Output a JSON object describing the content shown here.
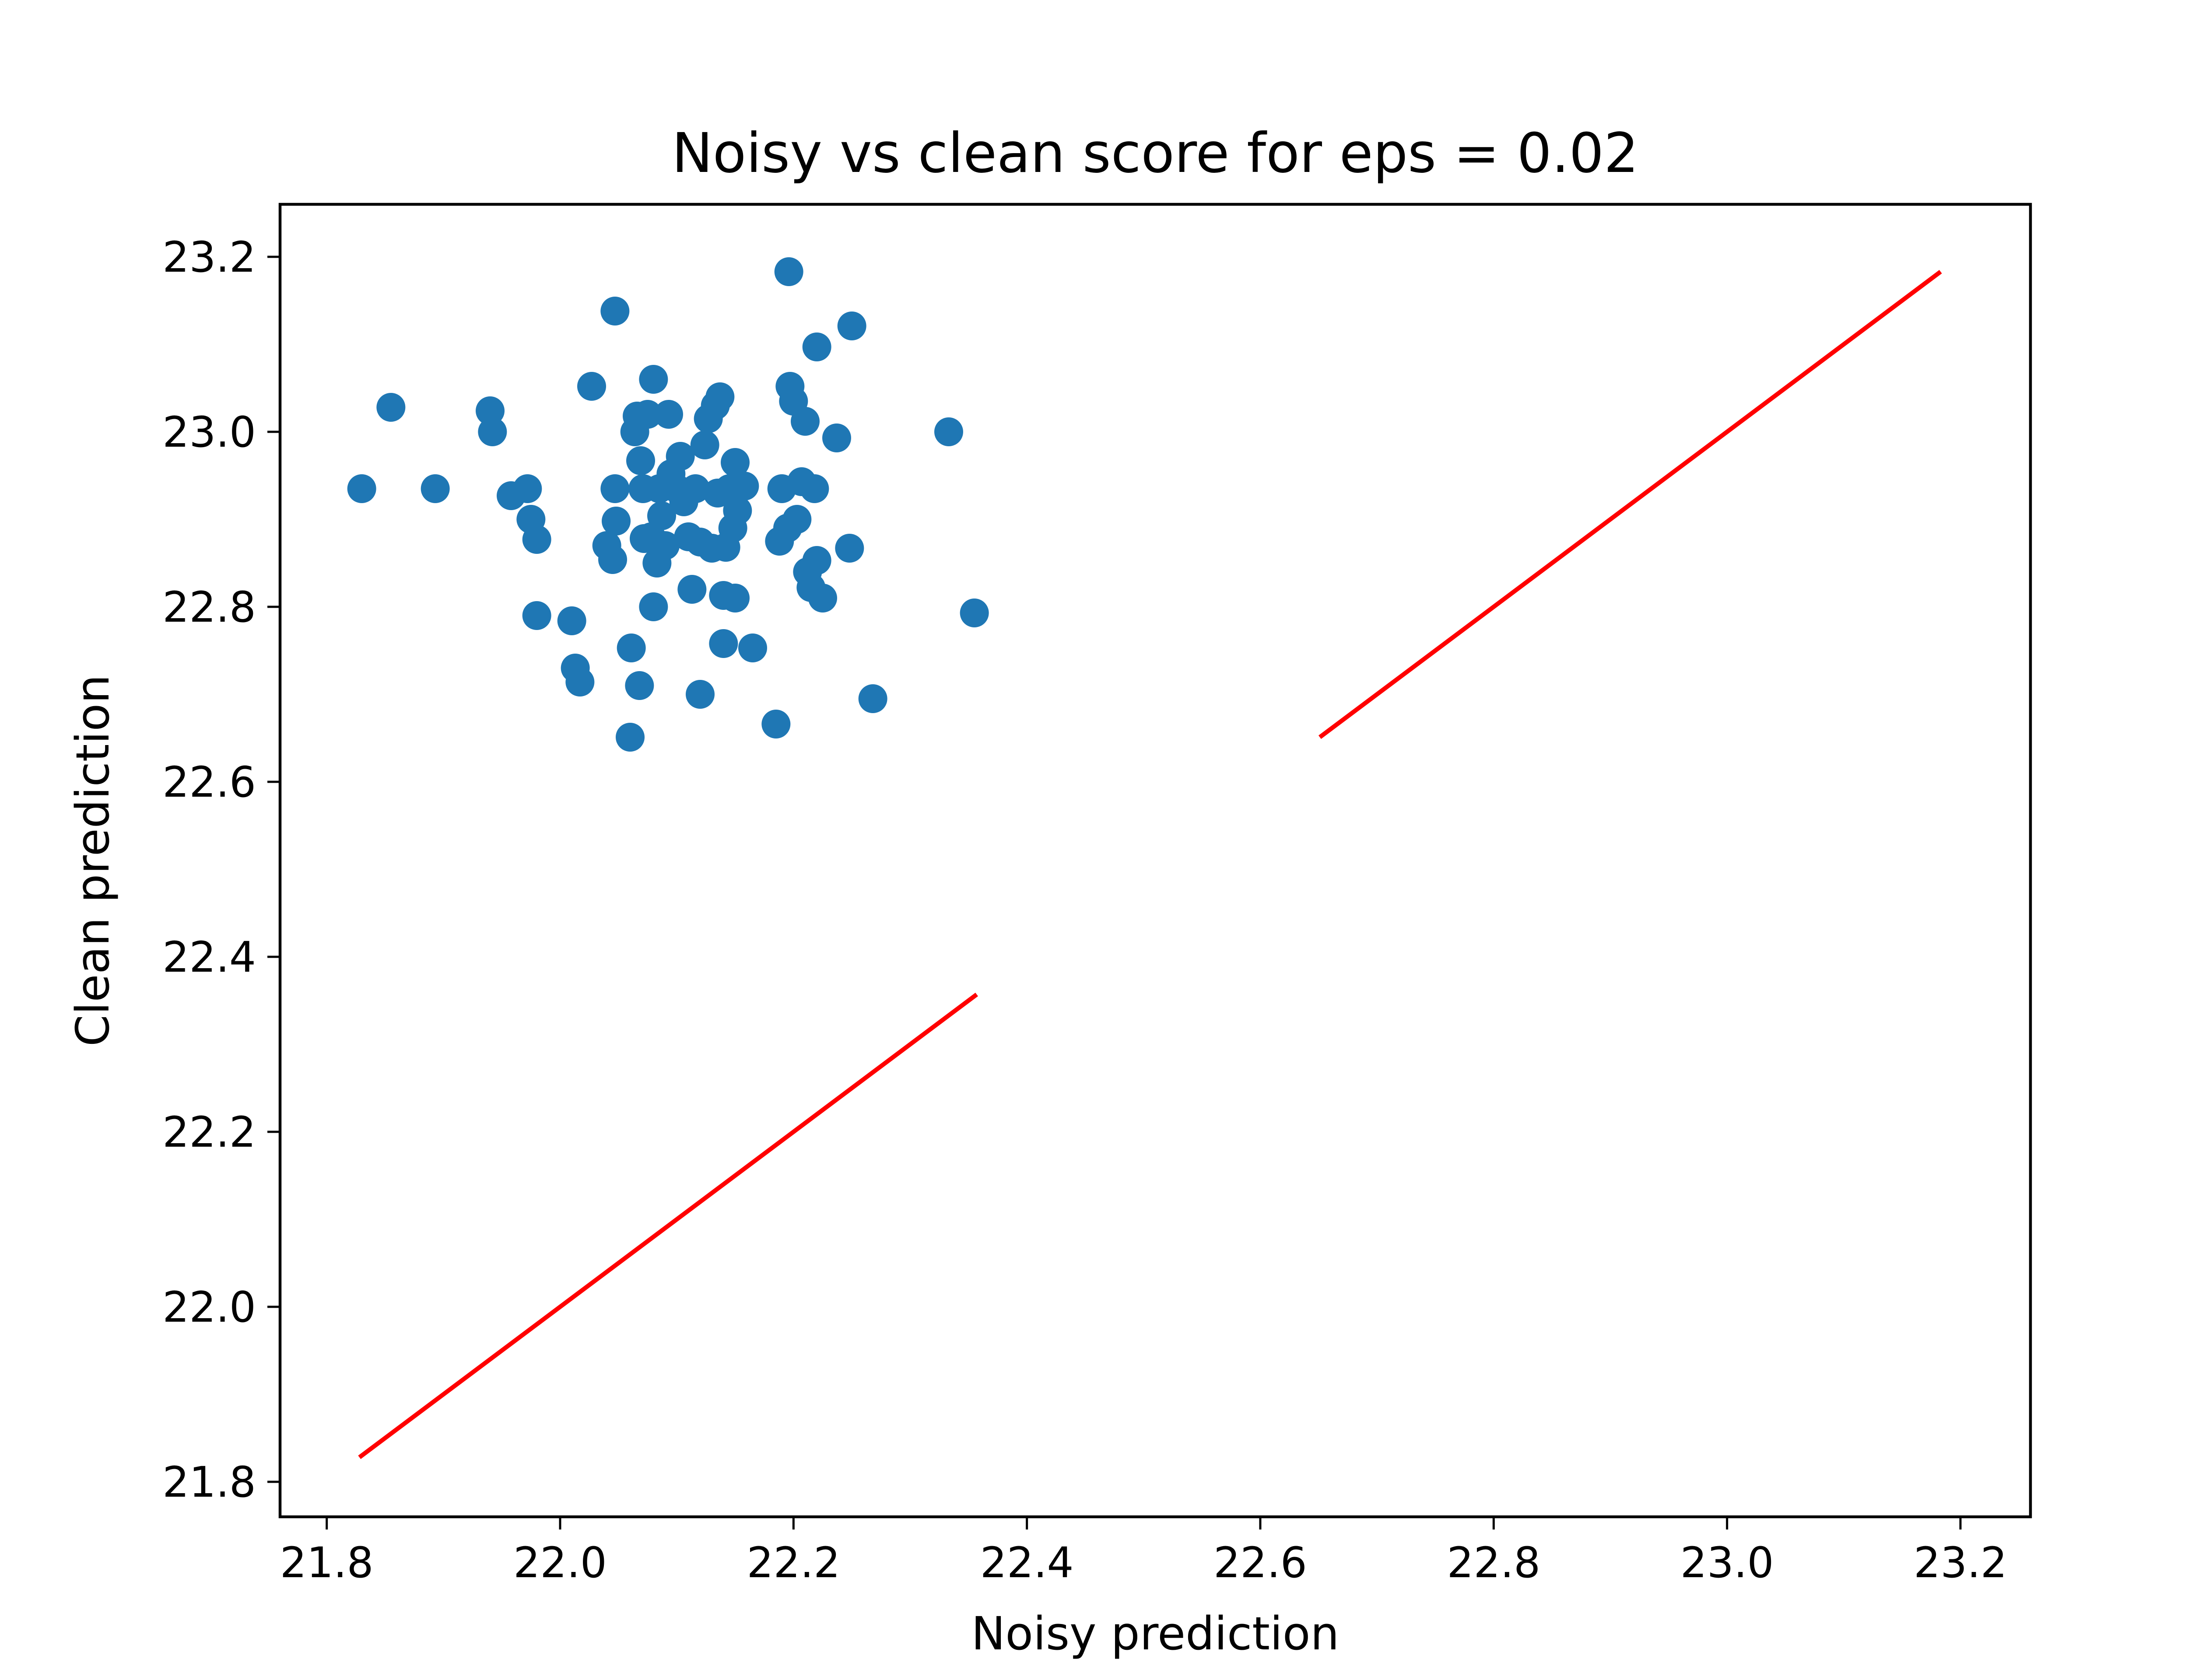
{
  "chart_data": {
    "type": "scatter",
    "title": "Noisy vs clean score for eps = 0.02",
    "xlabel": "Noisy prediction",
    "ylabel": "Clean prediction",
    "xlim": [
      21.76,
      23.26
    ],
    "ylim": [
      21.76,
      23.26
    ],
    "xticks": [
      {
        "value": 21.8,
        "label": "21.8"
      },
      {
        "value": 22.0,
        "label": "22.0"
      },
      {
        "value": 22.2,
        "label": "22.2"
      },
      {
        "value": 22.4,
        "label": "22.4"
      },
      {
        "value": 22.6,
        "label": "22.6"
      },
      {
        "value": 22.8,
        "label": "22.8"
      },
      {
        "value": 23.0,
        "label": "23.0"
      },
      {
        "value": 23.2,
        "label": "23.2"
      }
    ],
    "yticks": [
      {
        "value": 21.8,
        "label": "21.8"
      },
      {
        "value": 22.0,
        "label": "22.0"
      },
      {
        "value": 22.2,
        "label": "22.2"
      },
      {
        "value": 22.4,
        "label": "22.4"
      },
      {
        "value": 22.6,
        "label": "22.6"
      },
      {
        "value": 22.8,
        "label": "22.8"
      },
      {
        "value": 23.0,
        "label": "23.0"
      },
      {
        "value": 23.2,
        "label": "23.2"
      }
    ],
    "grid": false,
    "colors": {
      "points": "#1f77b4",
      "lines": "#ff0000"
    },
    "series": [
      {
        "type": "scatter",
        "points": [
          [
            21.83,
            22.935
          ],
          [
            21.855,
            23.028
          ],
          [
            21.893,
            22.935
          ],
          [
            21.94,
            23.024
          ],
          [
            21.942,
            23.0
          ],
          [
            21.958,
            22.927
          ],
          [
            21.972,
            22.935
          ],
          [
            21.975,
            22.9
          ],
          [
            21.98,
            22.877
          ],
          [
            21.98,
            22.79
          ],
          [
            22.01,
            22.784
          ],
          [
            22.013,
            22.73
          ],
          [
            22.017,
            22.714
          ],
          [
            22.027,
            23.052
          ],
          [
            22.04,
            22.87
          ],
          [
            22.045,
            22.854
          ],
          [
            22.047,
            23.138
          ],
          [
            22.047,
            22.935
          ],
          [
            22.048,
            22.898
          ],
          [
            22.06,
            22.651
          ],
          [
            22.061,
            22.753
          ],
          [
            22.064,
            23.0
          ],
          [
            22.066,
            23.018
          ],
          [
            22.068,
            22.71
          ],
          [
            22.069,
            22.967
          ],
          [
            22.071,
            22.935
          ],
          [
            22.072,
            22.878
          ],
          [
            22.075,
            23.02
          ],
          [
            22.078,
            22.88
          ],
          [
            22.08,
            22.8
          ],
          [
            22.08,
            23.06
          ],
          [
            22.083,
            22.85
          ],
          [
            22.085,
            22.935
          ],
          [
            22.087,
            22.904
          ],
          [
            22.09,
            22.87
          ],
          [
            22.093,
            23.02
          ],
          [
            22.095,
            22.952
          ],
          [
            22.1,
            22.935
          ],
          [
            22.103,
            22.972
          ],
          [
            22.106,
            22.92
          ],
          [
            22.11,
            22.88
          ],
          [
            22.113,
            22.82
          ],
          [
            22.116,
            22.935
          ],
          [
            22.12,
            22.874
          ],
          [
            22.12,
            22.7
          ],
          [
            22.124,
            22.985
          ],
          [
            22.127,
            23.015
          ],
          [
            22.13,
            22.867
          ],
          [
            22.133,
            23.03
          ],
          [
            22.135,
            22.93
          ],
          [
            22.137,
            23.04
          ],
          [
            22.14,
            22.813
          ],
          [
            22.14,
            22.758
          ],
          [
            22.142,
            22.868
          ],
          [
            22.145,
            22.935
          ],
          [
            22.148,
            22.89
          ],
          [
            22.15,
            22.81
          ],
          [
            22.15,
            22.965
          ],
          [
            22.152,
            22.91
          ],
          [
            22.158,
            22.938
          ],
          [
            22.165,
            22.753
          ],
          [
            22.185,
            22.666
          ],
          [
            22.188,
            22.875
          ],
          [
            22.19,
            22.935
          ],
          [
            22.195,
            22.89
          ],
          [
            22.196,
            23.183
          ],
          [
            22.197,
            23.052
          ],
          [
            22.2,
            23.035
          ],
          [
            22.203,
            22.9
          ],
          [
            22.207,
            22.943
          ],
          [
            22.21,
            23.012
          ],
          [
            22.212,
            22.84
          ],
          [
            22.215,
            22.822
          ],
          [
            22.218,
            22.935
          ],
          [
            22.22,
            22.853
          ],
          [
            22.22,
            23.097
          ],
          [
            22.225,
            22.81
          ],
          [
            22.237,
            22.993
          ],
          [
            22.248,
            22.867
          ],
          [
            22.25,
            23.121
          ],
          [
            22.268,
            22.695
          ],
          [
            22.333,
            23.0
          ],
          [
            22.355,
            22.793
          ]
        ]
      },
      {
        "type": "line",
        "points": [
          [
            21.828,
            21.828
          ],
          [
            22.357,
            22.357
          ]
        ]
      },
      {
        "type": "line",
        "points": [
          [
            22.651,
            22.651
          ],
          [
            23.183,
            23.183
          ]
        ]
      }
    ]
  }
}
